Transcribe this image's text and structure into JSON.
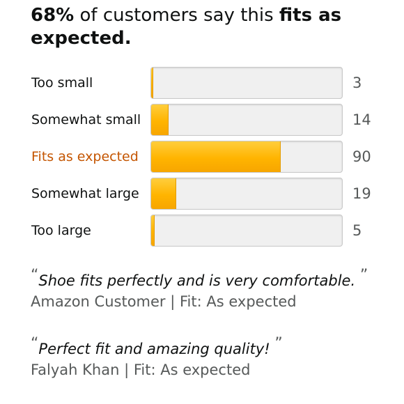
{
  "headline": {
    "percent": "68%",
    "middle": " of customers say this ",
    "emphasis": "fits as expected."
  },
  "fit_breakdown": [
    {
      "label": "Too small",
      "count": "3",
      "fraction": 0.01,
      "highlight": false
    },
    {
      "label": "Somewhat small",
      "count": "14",
      "fraction": 0.09,
      "highlight": false
    },
    {
      "label": "Fits as expected",
      "count": "90",
      "fraction": 0.68,
      "highlight": true
    },
    {
      "label": "Somewhat large",
      "count": "19",
      "fraction": 0.13,
      "highlight": false
    },
    {
      "label": "Too large",
      "count": "5",
      "fraction": 0.02,
      "highlight": false
    }
  ],
  "reviews": [
    {
      "quote": "Shoe fits perfectly and is very comfortable. ",
      "author": "Amazon Customer",
      "separator": " | ",
      "fit": "Fit: As expected"
    },
    {
      "quote": "Perfect fit and amazing quality! ",
      "author": "Falyah Khan",
      "separator": " | ",
      "fit": "Fit: As expected"
    }
  ],
  "quote_marks": {
    "open": "“",
    "close": "”"
  },
  "colors": {
    "bar_fill": "#ffb400",
    "highlight_text": "#c45500",
    "track": "#f0f0f0"
  }
}
